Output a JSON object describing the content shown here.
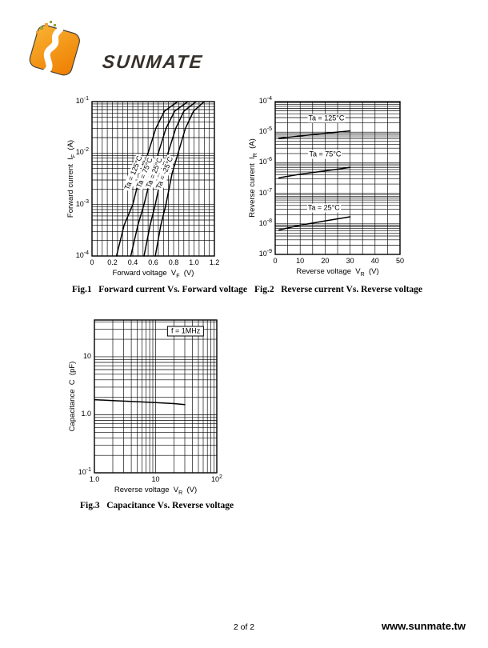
{
  "page": {
    "footer_page": "2 of 2",
    "footer_site": "www.sunmate.tw",
    "background": "#ffffff"
  },
  "logo": {
    "brand": "SUNMATE",
    "mark_colors": {
      "orange_light": "#f9b233",
      "orange_dark": "#ee7d00",
      "swoosh": "#ffffff",
      "dot_green": "#95a636",
      "dot_orange": "#f0a030",
      "shadow": "#4a443c"
    }
  },
  "figures": [
    {
      "caption": "Fig.1   Forward current Vs. Forward voltage"
    },
    {
      "caption": "Fig.2   Reverse current Vs. Reverse voltage"
    },
    {
      "caption": "Fig.3   Capacitance Vs. Reverse voltage"
    }
  ],
  "chart_data": [
    {
      "type": "line",
      "title": "Forward current Vs. Forward voltage",
      "xlabel": "Forward voltage  V_{F}  (V)",
      "ylabel": "Forward current  I_{F}  (A)",
      "grid": true,
      "legend": "inline-rotated-labels",
      "x": {
        "scale": "linear",
        "min": 0,
        "max": 1.2,
        "minor_step": 0.05,
        "ticks": [
          {
            "v": 0,
            "label": "0"
          },
          {
            "v": 0.2,
            "label": "0.2"
          },
          {
            "v": 0.4,
            "label": "0.4"
          },
          {
            "v": 0.6,
            "label": "0.6"
          },
          {
            "v": 0.8,
            "label": "0.8"
          },
          {
            "v": 1.0,
            "label": "1.0"
          },
          {
            "v": 1.2,
            "label": "1.2"
          }
        ]
      },
      "y": {
        "scale": "log",
        "min": 0.0001,
        "max": 0.1,
        "ticks": [
          {
            "v": 0.1,
            "label": "10^{-1}"
          },
          {
            "v": 0.01,
            "label": "10^{-2}"
          },
          {
            "v": 0.001,
            "label": "10^{-3}"
          },
          {
            "v": 0.0001,
            "label": "10^{-4}"
          }
        ]
      },
      "series": [
        {
          "name": "Ta = 125°C",
          "points": [
            [
              0.24,
              0.0001
            ],
            [
              0.315,
              0.0004
            ],
            [
              0.4,
              0.001
            ],
            [
              0.475,
              0.004
            ],
            [
              0.55,
              0.01
            ],
            [
              0.625,
              0.03
            ],
            [
              0.71,
              0.065
            ],
            [
              0.84,
              0.1
            ]
          ],
          "label": {
            "text": "Ta = 125°C",
            "x": 0.405,
            "y": 0.0042,
            "rotate": -68
          }
        },
        {
          "name": "Ta = 75°C",
          "points": [
            [
              0.38,
              0.0001
            ],
            [
              0.45,
              0.0004
            ],
            [
              0.51,
              0.001
            ],
            [
              0.585,
              0.004
            ],
            [
              0.65,
              0.01
            ],
            [
              0.725,
              0.03
            ],
            [
              0.81,
              0.065
            ],
            [
              0.94,
              0.1
            ]
          ],
          "label": {
            "text": "Ta = 75°C",
            "x": 0.515,
            "y": 0.0042,
            "rotate": -68
          }
        },
        {
          "name": "Ta = 25°C",
          "points": [
            [
              0.51,
              0.0001
            ],
            [
              0.57,
              0.0004
            ],
            [
              0.62,
              0.001
            ],
            [
              0.685,
              0.004
            ],
            [
              0.745,
              0.01
            ],
            [
              0.82,
              0.03
            ],
            [
              0.9,
              0.065
            ],
            [
              1.02,
              0.1
            ]
          ],
          "label": {
            "text": "Ta = 25°C",
            "x": 0.615,
            "y": 0.0042,
            "rotate": -68
          }
        },
        {
          "name": "Ta = -25°C",
          "points": [
            [
              0.62,
              0.0001
            ],
            [
              0.675,
              0.0004
            ],
            [
              0.725,
              0.001
            ],
            [
              0.785,
              0.004
            ],
            [
              0.845,
              0.01
            ],
            [
              0.915,
              0.03
            ],
            [
              0.995,
              0.065
            ],
            [
              1.1,
              0.1
            ]
          ],
          "label": {
            "text": "Ta = -25°C",
            "x": 0.715,
            "y": 0.0042,
            "rotate": -68
          }
        }
      ],
      "annotations": []
    },
    {
      "type": "line",
      "title": "Reverse current Vs. Reverse voltage",
      "xlabel": "Reverse voltage  V_{R}  (V)",
      "ylabel": "Reverse current  I_{R}  (A)",
      "grid": true,
      "legend": "inline-labels",
      "x": {
        "scale": "linear",
        "min": 0,
        "max": 50,
        "minor_step": 5,
        "ticks": [
          {
            "v": 0,
            "label": "0"
          },
          {
            "v": 10,
            "label": "10"
          },
          {
            "v": 20,
            "label": "20"
          },
          {
            "v": 30,
            "label": "30"
          },
          {
            "v": 40,
            "label": "40"
          },
          {
            "v": 50,
            "label": "50"
          }
        ]
      },
      "y": {
        "scale": "log",
        "min": 1e-09,
        "max": 0.0001,
        "ticks": [
          {
            "v": 0.0001,
            "label": "10^{-4}"
          },
          {
            "v": 1e-05,
            "label": "10^{-5}"
          },
          {
            "v": 1e-06,
            "label": "10^{-6}"
          },
          {
            "v": 1e-07,
            "label": "10^{-7}"
          },
          {
            "v": 1e-08,
            "label": "10^{-8}"
          },
          {
            "v": 1e-09,
            "label": "10^{-9}"
          }
        ]
      },
      "series": [
        {
          "name": "Ta = 125°C",
          "points": [
            [
              1.5,
              6.3e-06
            ],
            [
              10,
              7.5e-06
            ],
            [
              20,
              9.2e-06
            ],
            [
              30,
              1.1e-05
            ]
          ],
          "label": {
            "text": "Ta = 125°C",
            "x": 20.5,
            "y": 2.8e-05,
            "rotate": 0
          }
        },
        {
          "name": "Ta = 75°C",
          "points": [
            [
              1.5,
              3.2e-07
            ],
            [
              10,
              4.2e-07
            ],
            [
              20,
              5.4e-07
            ],
            [
              30,
              7e-07
            ]
          ],
          "label": {
            "text": "Ta = 75°C",
            "x": 20,
            "y": 1.9e-06,
            "rotate": 0
          }
        },
        {
          "name": "Ta = 25°C",
          "points": [
            [
              1.5,
              6.3e-09
            ],
            [
              10,
              9e-09
            ],
            [
              20,
              1.25e-08
            ],
            [
              30,
              1.7e-08
            ]
          ],
          "label": {
            "text": "Ta = 25°C",
            "x": 19.5,
            "y": 3.3e-08,
            "rotate": 0
          }
        }
      ],
      "annotations": []
    },
    {
      "type": "line",
      "title": "Capacitance Vs. Reverse voltage",
      "xlabel": "Reverse voltage  V_{R}  (V)",
      "ylabel": "Capacitance  C  (pF)",
      "grid": true,
      "legend": "annotation-box",
      "x": {
        "scale": "log",
        "min": 1.0,
        "max": 100,
        "ticks": [
          {
            "v": 1,
            "label": "1.0"
          },
          {
            "v": 10,
            "label": "10"
          },
          {
            "v": 100,
            "label": "10^{2}"
          }
        ]
      },
      "y": {
        "scale": "log",
        "min": 0.1,
        "max": 43,
        "ticks": [
          {
            "v": 10,
            "label": "10"
          },
          {
            "v": 1,
            "label": "1.0"
          },
          {
            "v": 0.1,
            "label": "10^{-1}"
          }
        ]
      },
      "series": [
        {
          "name": "C at f = 1MHz",
          "points": [
            [
              1.0,
              1.82
            ],
            [
              2,
              1.76
            ],
            [
              5,
              1.68
            ],
            [
              10,
              1.62
            ],
            [
              20,
              1.56
            ],
            [
              30,
              1.5
            ]
          ],
          "label": null
        }
      ],
      "annotations": [
        {
          "text": "f = 1MHz",
          "x": 31,
          "y": 28,
          "boxed": true
        }
      ]
    }
  ]
}
